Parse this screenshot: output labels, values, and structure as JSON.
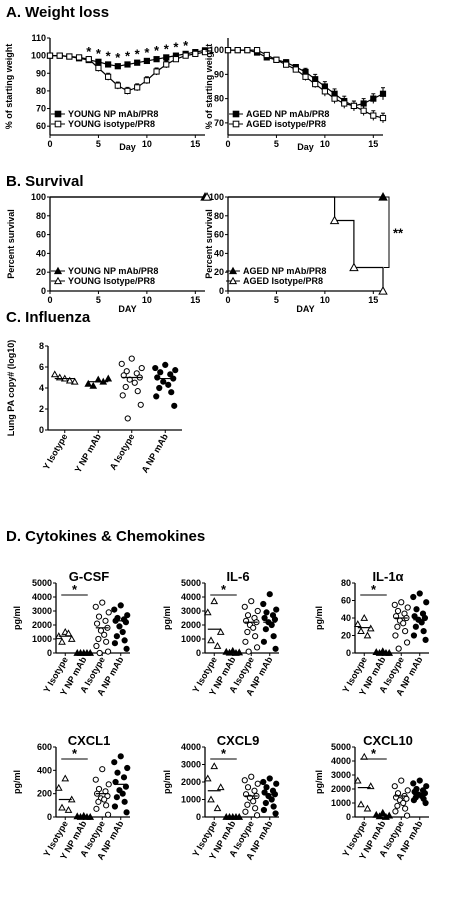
{
  "sections": [
    {
      "label": "A. Weight loss"
    },
    {
      "label": "B. Survival"
    },
    {
      "label": "C. Influenza"
    },
    {
      "label": "D. Cytokines & Chemokines"
    }
  ],
  "chart_data": [
    {
      "id": "A1",
      "type": "line",
      "xlabel": "Day",
      "ylabel": "% of starting weight",
      "xlim": [
        0,
        16
      ],
      "ylim": [
        55,
        110
      ],
      "xticks": [
        "0",
        "5",
        "10",
        "15"
      ],
      "yticks": [
        "60",
        "70",
        "80",
        "90",
        "100",
        "110"
      ],
      "x": [
        0,
        1,
        2,
        3,
        4,
        5,
        6,
        7,
        8,
        9,
        10,
        11,
        12,
        13,
        14,
        15,
        16
      ],
      "series": [
        {
          "name": "YOUNG NP mAb/PR8",
          "marker": "filled-square",
          "values": [
            100,
            100,
            99.5,
            98.5,
            97.5,
            96.5,
            95,
            94,
            95,
            96,
            97,
            98,
            99,
            100,
            101,
            102,
            103
          ],
          "err": [
            1,
            1,
            1,
            1,
            1,
            1,
            1,
            1,
            1,
            1,
            1,
            1,
            1,
            1,
            1,
            1,
            1
          ]
        },
        {
          "name": "YOUNG isotype/PR8",
          "marker": "open-square",
          "values": [
            100,
            100,
            99.5,
            99,
            98,
            93,
            88,
            83,
            80,
            82,
            86,
            91,
            95,
            98,
            100,
            101,
            102
          ],
          "err": [
            1,
            1,
            1,
            1,
            1.5,
            2,
            2,
            2,
            2,
            2,
            2,
            2,
            2,
            1.5,
            1.5,
            1,
            1
          ]
        }
      ],
      "annotations": [
        "*",
        "*",
        "*",
        "*",
        "*",
        "*",
        "*",
        "*",
        "*",
        "*",
        "*"
      ]
    },
    {
      "id": "A2",
      "type": "line",
      "xlabel": "Day",
      "ylabel": "% of starting weight",
      "xlim": [
        0,
        16
      ],
      "ylim": [
        65,
        105
      ],
      "xticks": [
        "0",
        "5",
        "10",
        "15"
      ],
      "yticks": [
        "70",
        "80",
        "90",
        "100"
      ],
      "x": [
        0,
        1,
        2,
        3,
        4,
        5,
        6,
        7,
        8,
        9,
        10,
        11,
        12,
        13,
        14,
        15,
        16
      ],
      "series": [
        {
          "name": "AGED NP mAb/PR8",
          "marker": "filled-square",
          "values": [
            100,
            100,
            100,
            99,
            97,
            96,
            95,
            93,
            91,
            88,
            85,
            82,
            79,
            77,
            78,
            80,
            82
          ],
          "err": [
            1,
            1,
            1,
            1,
            1,
            1,
            1,
            1,
            1.5,
            2,
            2,
            2,
            2,
            2,
            2,
            2,
            2.5
          ]
        },
        {
          "name": "AGED isotype/PR8",
          "marker": "open-square",
          "values": [
            100,
            100,
            100,
            100,
            98,
            96,
            94,
            92,
            89,
            86,
            83,
            80,
            78,
            77,
            75,
            73,
            72
          ],
          "err": [
            1,
            1,
            1,
            1,
            1,
            1,
            1,
            1,
            1.5,
            1.5,
            2,
            2,
            2,
            2,
            2,
            2,
            2
          ]
        }
      ]
    },
    {
      "id": "B1",
      "type": "line",
      "xlabel": "DAY",
      "ylabel": "Percent survival",
      "xlim": [
        0,
        16
      ],
      "ylim": [
        0,
        100
      ],
      "xticks": [
        "0",
        "5",
        "10",
        "15"
      ],
      "yticks": [
        "0",
        "20",
        "40",
        "60",
        "80",
        "100"
      ],
      "series": [
        {
          "name": "YOUNG NP mAb/PR8",
          "marker": "filled-triangle",
          "points": [
            [
              0,
              100
            ],
            [
              16,
              100
            ]
          ]
        },
        {
          "name": "YOUNG Isotype/PR8",
          "marker": "open-triangle",
          "points": [
            [
              0,
              100
            ],
            [
              16,
              100
            ]
          ]
        }
      ]
    },
    {
      "id": "B2",
      "type": "line",
      "xlabel": "DAY",
      "ylabel": "Percent survival",
      "xlim": [
        0,
        16
      ],
      "ylim": [
        0,
        100
      ],
      "xticks": [
        "0",
        "5",
        "10",
        "15"
      ],
      "yticks": [
        "0",
        "20",
        "40",
        "60",
        "80",
        "100"
      ],
      "series": [
        {
          "name": "AGED NP mAb/PR8",
          "marker": "filled-triangle",
          "points": [
            [
              0,
              100
            ],
            [
              16,
              100
            ]
          ]
        },
        {
          "name": "AGED Isotype/PR8",
          "marker": "open-triangle",
          "points": [
            [
              0,
              100
            ],
            [
              11,
              100
            ],
            [
              11,
              75
            ],
            [
              13,
              75
            ],
            [
              13,
              25
            ],
            [
              16,
              25
            ],
            [
              16,
              0
            ]
          ]
        }
      ],
      "annotation": "**"
    },
    {
      "id": "C",
      "type": "scatter",
      "ylabel": "Lung PA copy# (log10)",
      "ylim": [
        0,
        8
      ],
      "yticks": [
        "0",
        "2",
        "4",
        "6",
        "8"
      ],
      "categories": [
        "Y Isotype",
        "Y NP mAb",
        "A Isotype",
        "A NP mAb"
      ],
      "markers": [
        "open-triangle",
        "filled-triangle",
        "open-circle",
        "filled-circle"
      ],
      "values": [
        [
          4.9,
          5.3,
          4.6,
          5.0,
          4.7
        ],
        [
          4.8,
          4.4,
          4.9,
          4.2,
          4.6
        ],
        [
          6.8,
          6.3,
          5.9,
          5.6,
          5.4,
          5.2,
          5.0,
          4.8,
          4.5,
          4.1,
          3.7,
          3.3,
          2.4,
          1.1
        ],
        [
          6.2,
          5.9,
          5.7,
          5.5,
          5.3,
          5.0,
          4.9,
          4.6,
          4.3,
          4.0,
          3.6,
          3.2,
          2.3
        ]
      ],
      "means": [
        4.9,
        4.6,
        5.0,
        4.9
      ]
    },
    {
      "id": "G-CSF",
      "type": "scatter",
      "title": "G-CSF",
      "ylabel": "pg/ml",
      "ylim": [
        0,
        5000
      ],
      "yticks": [
        "0",
        "1000",
        "2000",
        "3000",
        "4000",
        "5000"
      ],
      "categories": [
        "Y Isotype",
        "Y NP mAb",
        "A Isotype",
        "A NP mAb"
      ],
      "markers": [
        "open-triangle",
        "filled-triangle",
        "open-circle",
        "filled-circle"
      ],
      "values": [
        [
          1500,
          1200,
          1000,
          800,
          1400
        ],
        [
          0,
          0,
          0,
          0,
          0
        ],
        [
          3600,
          3300,
          2900,
          2600,
          2300,
          2100,
          1800,
          1600,
          1300,
          1000,
          800,
          500,
          100,
          0
        ],
        [
          3400,
          3100,
          2700,
          2500,
          2400,
          2300,
          2200,
          1900,
          1500,
          1200,
          900,
          700,
          300
        ]
      ],
      "means": [
        1200,
        0,
        1800,
        2300
      ],
      "sig": "*"
    },
    {
      "id": "IL-6",
      "type": "scatter",
      "title": "IL-6",
      "ylabel": "pg/ml",
      "ylim": [
        0,
        5000
      ],
      "yticks": [
        "0",
        "1000",
        "2000",
        "3000",
        "4000",
        "5000"
      ],
      "categories": [
        "Y Isotype",
        "Y NP mAb",
        "A Isotype",
        "A NP mAb"
      ],
      "markers": [
        "open-triangle",
        "filled-triangle",
        "open-circle",
        "filled-circle"
      ],
      "values": [
        [
          3700,
          2900,
          1500,
          900,
          500
        ],
        [
          150,
          80,
          40,
          20,
          0
        ],
        [
          3700,
          3300,
          3000,
          2700,
          2500,
          2300,
          2200,
          2000,
          1800,
          1500,
          1200,
          800,
          400,
          100
        ],
        [
          4200,
          3500,
          3100,
          2900,
          2700,
          2500,
          2400,
          2200,
          2000,
          1700,
          1200,
          800,
          300
        ]
      ],
      "means": [
        1700,
        60,
        2200,
        2200
      ],
      "sig": "*"
    },
    {
      "id": "IL-1a",
      "type": "scatter",
      "title": "IL-1α",
      "ylabel": "pg/ml",
      "ylim": [
        0,
        80
      ],
      "yticks": [
        "0",
        "20",
        "40",
        "60",
        "80"
      ],
      "categories": [
        "Y Isotype",
        "Y NP mAb",
        "A Isotype",
        "A NP mAb"
      ],
      "markers": [
        "open-triangle",
        "filled-triangle",
        "open-circle",
        "filled-circle"
      ],
      "values": [
        [
          40,
          33,
          28,
          25,
          20
        ],
        [
          2,
          1,
          0,
          0,
          0
        ],
        [
          58,
          55,
          52,
          48,
          45,
          42,
          40,
          37,
          34,
          30,
          25,
          20,
          12,
          5
        ],
        [
          68,
          64,
          58,
          50,
          45,
          42,
          40,
          38,
          35,
          30,
          25,
          20,
          15
        ]
      ],
      "means": [
        29,
        0,
        40,
        38
      ],
      "sig": "*"
    },
    {
      "id": "CXCL1",
      "type": "scatter",
      "title": "CXCL1",
      "ylabel": "pg/ml",
      "ylim": [
        0,
        600
      ],
      "yticks": [
        "0",
        "200",
        "400",
        "600"
      ],
      "categories": [
        "Y Isotype",
        "Y NP mAb",
        "A Isotype",
        "A NP mAb"
      ],
      "markers": [
        "open-triangle",
        "filled-triangle",
        "open-circle",
        "filled-circle"
      ],
      "values": [
        [
          330,
          250,
          150,
          80,
          60
        ],
        [
          10,
          5,
          0,
          0,
          0
        ],
        [
          410,
          320,
          280,
          240,
          220,
          200,
          180,
          160,
          150,
          130,
          100,
          70,
          20
        ],
        [
          520,
          470,
          420,
          380,
          340,
          300,
          260,
          230,
          200,
          170,
          130,
          90,
          40
        ]
      ],
      "means": [
        150,
        0,
        200,
        280
      ],
      "sig": "*"
    },
    {
      "id": "CXCL9",
      "type": "scatter",
      "title": "CXCL9",
      "ylabel": "pg/ml",
      "ylim": [
        0,
        4000
      ],
      "yticks": [
        "0",
        "1000",
        "2000",
        "3000",
        "4000"
      ],
      "categories": [
        "Y Isotype",
        "Y NP mAb",
        "A Isotype",
        "A NP mAb"
      ],
      "markers": [
        "open-triangle",
        "filled-triangle",
        "open-circle",
        "filled-circle"
      ],
      "values": [
        [
          2900,
          2200,
          1700,
          1000,
          500
        ],
        [
          0,
          0,
          0,
          0,
          0
        ],
        [
          2300,
          2100,
          1900,
          1700,
          1500,
          1300,
          1200,
          1100,
          900,
          700,
          500,
          300,
          100
        ],
        [
          2200,
          2000,
          1900,
          1700,
          1500,
          1400,
          1300,
          1200,
          1000,
          800,
          600,
          400,
          200
        ]
      ],
      "means": [
        1500,
        0,
        1200,
        1300
      ],
      "sig": "*"
    },
    {
      "id": "CXCL10",
      "type": "scatter",
      "title": "CXCL10",
      "ylabel": "pg/ml",
      "ylim": [
        0,
        5000
      ],
      "yticks": [
        "0",
        "1000",
        "2000",
        "3000",
        "4000",
        "5000"
      ],
      "categories": [
        "Y Isotype",
        "Y NP mAb",
        "A Isotype",
        "A NP mAb"
      ],
      "markers": [
        "open-triangle",
        "filled-triangle",
        "open-circle",
        "filled-circle"
      ],
      "values": [
        [
          4300,
          2600,
          2200,
          900,
          600
        ],
        [
          300,
          150,
          100,
          50,
          0
        ],
        [
          2600,
          2200,
          1900,
          1700,
          1500,
          1400,
          1300,
          1200,
          1000,
          800,
          600,
          400,
          100
        ],
        [
          2600,
          2400,
          2200,
          2000,
          1900,
          1800,
          1700,
          1600,
          1500,
          1400,
          1300,
          1200,
          1000
        ]
      ],
      "means": [
        2100,
        100,
        1500,
        1600
      ],
      "sig": "*"
    }
  ]
}
